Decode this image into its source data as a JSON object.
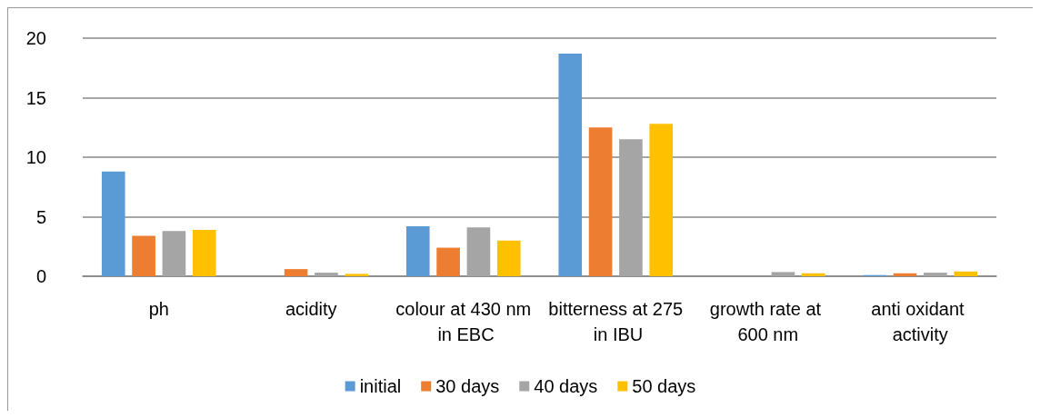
{
  "chart_data": {
    "type": "bar",
    "categories": [
      "ph",
      "acidity",
      "colour at 430 nm in EBC",
      "bitterness at 275 in IBU",
      "growth rate at 600 nm",
      "anti oxidant activity"
    ],
    "series": [
      {
        "name": "initial",
        "color": "#5b9bd5",
        "values": [
          8.8,
          0,
          4.2,
          18.7,
          0,
          0.1
        ]
      },
      {
        "name": "30 days",
        "color": "#ed7d31",
        "values": [
          3.4,
          0.6,
          2.4,
          12.5,
          0,
          0.25
        ]
      },
      {
        "name": "40 days",
        "color": "#a5a5a5",
        "values": [
          3.8,
          0.3,
          4.1,
          11.5,
          0.35,
          0.3
        ]
      },
      {
        "name": "50 days",
        "color": "#ffc000",
        "values": [
          3.9,
          0.2,
          3.0,
          12.8,
          0.25,
          0.4
        ]
      }
    ],
    "ylim": [
      0,
      20
    ],
    "yticks": [
      0,
      5,
      10,
      15,
      20
    ],
    "grid": "y",
    "legend": "bottom"
  }
}
